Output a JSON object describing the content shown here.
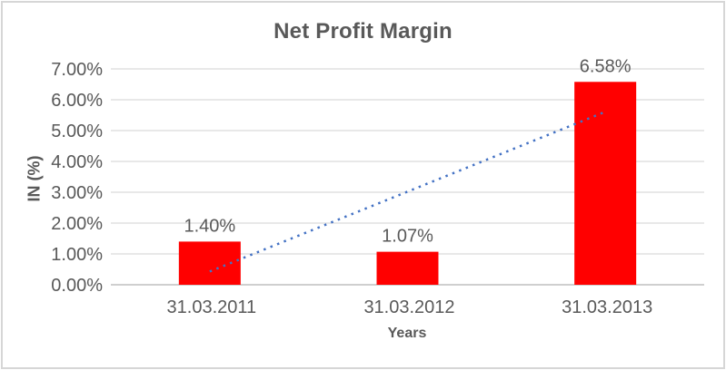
{
  "chart_data": {
    "type": "bar",
    "title": "Net Profit Margin",
    "xlabel": "Years",
    "ylabel": "IN (%)",
    "categories": [
      "31.03.2011",
      "31.03.2012",
      "31.03.2013"
    ],
    "values": [
      1.4,
      1.07,
      6.58
    ],
    "data_labels": [
      "1.40%",
      "1.07%",
      "6.58%"
    ],
    "y_ticks": [
      "0.00%",
      "1.00%",
      "2.00%",
      "3.00%",
      "4.00%",
      "5.00%",
      "6.00%",
      "7.00%"
    ],
    "ylim": [
      0,
      7
    ],
    "grid": true,
    "legend": "none",
    "bar_color": "#ff0000",
    "text_color": "#595959",
    "gridline_color": "#d9d9d9",
    "axis_line_color": "#bfbfbf",
    "trendline": {
      "type": "linear",
      "style": "dotted",
      "color": "#4472c4",
      "start_value": 0.43,
      "end_value": 5.61
    }
  }
}
